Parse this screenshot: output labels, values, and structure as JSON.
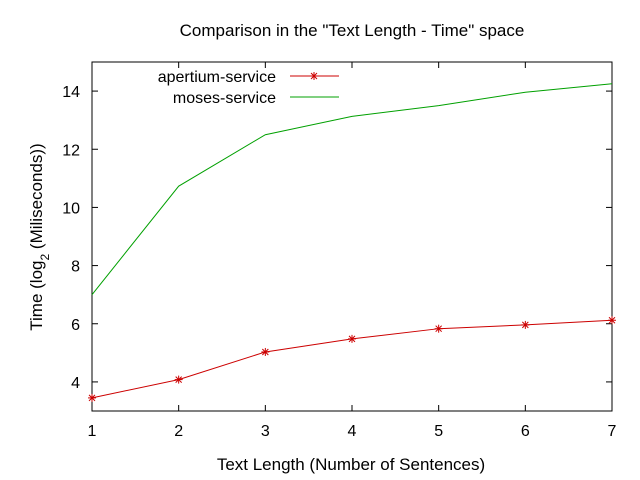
{
  "chart_data": {
    "type": "line",
    "title": "Comparison in the \"Text Length - Time\" space",
    "xlabel": "Text Length (Number of Sentences)",
    "ylabel_prefix": "Time (log",
    "ylabel_sub": "2",
    "ylabel_suffix": " (Miliseconds))",
    "xlim": [
      1,
      7
    ],
    "ylim": [
      3,
      15
    ],
    "x_ticks": [
      1,
      2,
      3,
      4,
      5,
      6,
      7
    ],
    "y_ticks": [
      4,
      6,
      8,
      10,
      12,
      14
    ],
    "grid": false,
    "legend_position": "top-left",
    "x": [
      1,
      2,
      3,
      4,
      5,
      6,
      7
    ],
    "series": [
      {
        "name": "apertium-service",
        "color": "#cc0000",
        "marker": "asterisk",
        "values": [
          3.45,
          4.08,
          5.03,
          5.48,
          5.83,
          5.96,
          6.12
        ]
      },
      {
        "name": "moses-service",
        "color": "#00a000",
        "marker": "none",
        "values": [
          7.0,
          10.73,
          12.5,
          13.13,
          13.5,
          13.96,
          14.25
        ]
      }
    ]
  }
}
